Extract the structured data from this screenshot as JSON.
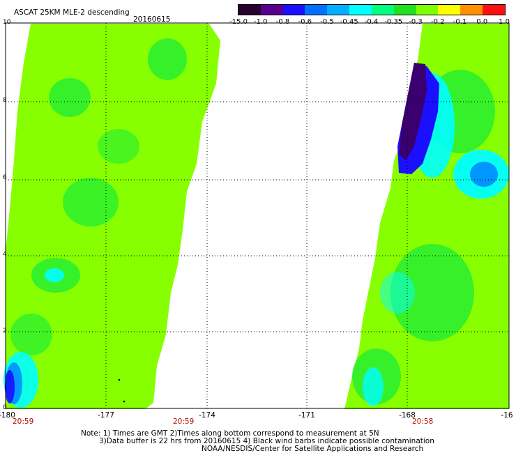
{
  "title": "ASCAT 25KM MLE-2 descending",
  "date": "20160615",
  "colorbar": {
    "labels": [
      "-15.0",
      "-1.0",
      "-0.8",
      "-0.6",
      "-0.5",
      "-0.45",
      "-0.4",
      "-0.35",
      "-0.3",
      "-0.2",
      "-0.1",
      "0.0",
      "1.0"
    ],
    "colors": [
      "#2a0030",
      "#5a0090",
      "#1a10ff",
      "#0070ff",
      "#00b0ff",
      "#00ffff",
      "#00ff80",
      "#20e020",
      "#80ff00",
      "#ffff00",
      "#ff9000",
      "#ff1010"
    ]
  },
  "x_ticks": [
    "-180",
    "-177",
    "-174",
    "-171",
    "-168",
    "-16"
  ],
  "y_ticks": [
    "0",
    "2",
    "4",
    "6",
    "8",
    "10"
  ],
  "times": [
    "20:59",
    "20:59",
    "20:58"
  ],
  "notes": [
    "Note: 1) Times are GMT 2)Times along bottom correspond to measurement at 5N",
    "3)Data buffer is 22 hrs from 20160615 4) Black wind barbs indicate possible contamination",
    "NOAA/NESDIS/Center for Satellite Applications and Research"
  ],
  "swath_colors": {
    "base": "#88ff00",
    "green": "#22ee33",
    "cyan": "#00ffff",
    "blue_light": "#0090ff",
    "blue": "#1a10ff",
    "purple": "#3a0070"
  }
}
